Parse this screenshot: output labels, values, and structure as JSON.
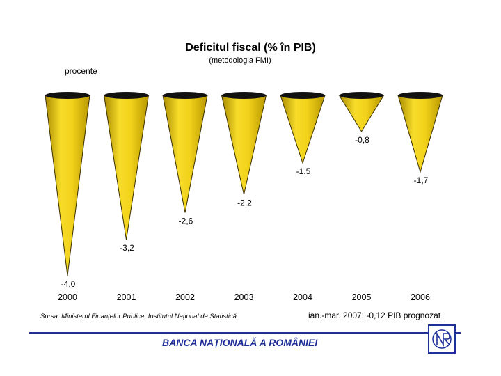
{
  "chart_data": {
    "type": "bar",
    "title": "Deficitul fiscal (% în PIB)",
    "subtitle": "(metodologia FMI)",
    "ylabel": "procente",
    "xlabel": "",
    "categories": [
      "2000",
      "2001",
      "2002",
      "2003",
      "2004",
      "2005",
      "2006"
    ],
    "values": [
      -4.0,
      -3.2,
      -2.6,
      -2.2,
      -1.5,
      -0.8,
      -1.7
    ],
    "value_labels": [
      "-4,0",
      "-3,2",
      "-2,6",
      "-2,2",
      "-1,5",
      "-0,8",
      "-1,7"
    ],
    "ylim": [
      -4.0,
      0
    ],
    "grid": false,
    "legend": "none"
  },
  "footer": {
    "source": "Sursa: Ministerul Finanțelor Publice; Institutul Național de Statistică",
    "forecast": "ian.-mar. 2007: -0,12 PIB prognozat",
    "bank_name": "BANCA NAȚIONALĂ A ROMÂNIEI"
  },
  "colors": {
    "cone_fill": "#f2d21a",
    "cone_shadow": "#b79800",
    "cone_top": "#111111",
    "brand_blue": "#1f2f9a"
  },
  "icons": {
    "logo": "bnr-monogram-logo"
  }
}
